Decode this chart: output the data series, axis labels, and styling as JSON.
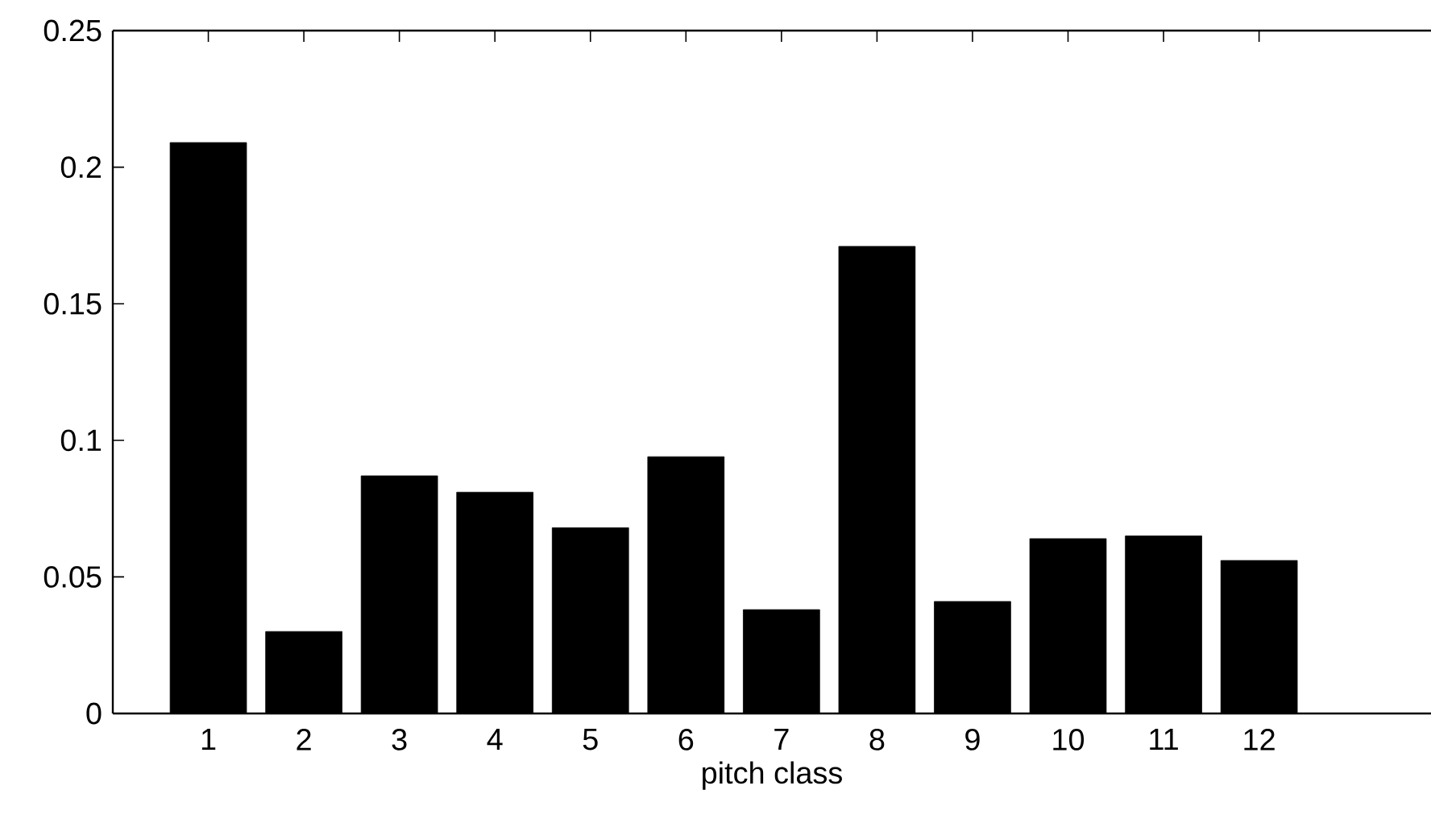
{
  "chart_data": {
    "type": "bar",
    "xlabel": "pitch class",
    "x": [
      1,
      2,
      3,
      4,
      5,
      6,
      7,
      8,
      9,
      10,
      11,
      12
    ],
    "values": [
      0.209,
      0.03,
      0.087,
      0.081,
      0.068,
      0.094,
      0.038,
      0.171,
      0.041,
      0.064,
      0.065,
      0.056
    ],
    "color": "#000000",
    "xlim": [
      0,
      13.8
    ],
    "xticks": [
      1,
      2,
      3,
      4,
      5,
      6,
      7,
      8,
      9,
      10,
      11,
      12
    ],
    "ylim": [
      0,
      0.25
    ],
    "yticks": [
      0,
      0.05,
      0.1,
      0.15,
      0.2,
      0.25
    ]
  }
}
